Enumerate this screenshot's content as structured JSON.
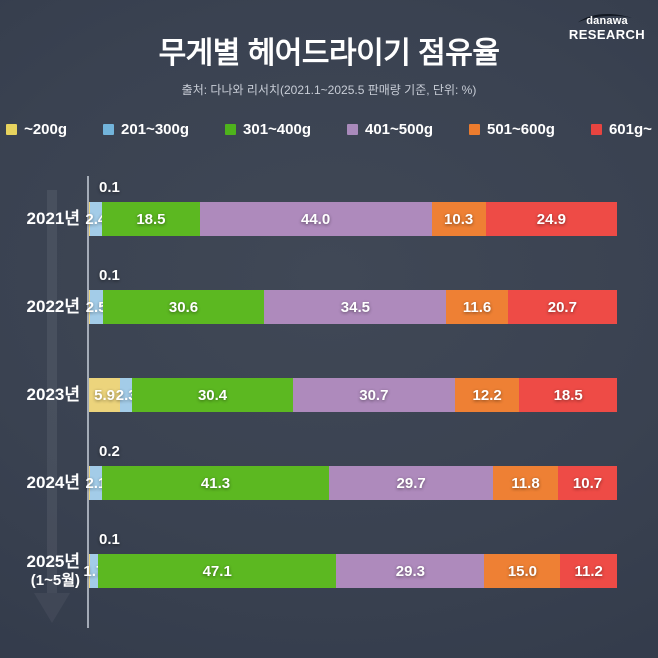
{
  "logo": {
    "brand": "danawa",
    "research": "RESEARCH"
  },
  "header": {
    "title": "무게별 헤어드라이기 점유율",
    "subtitle": "출처: 다나와 리서치(2021.1~2025.5 판매량 기준, 단위: %)"
  },
  "chart_data": {
    "type": "bar",
    "stacked": true,
    "orientation": "horizontal",
    "value_unit": "%",
    "xlim": [
      0,
      100
    ],
    "grid": false,
    "legend_position": "top",
    "categories": [
      "2021년",
      "2022년",
      "2023년",
      "2024년",
      "2025년 (1~5월)"
    ],
    "category_display": [
      {
        "label": "2021년",
        "sub": ""
      },
      {
        "label": "2022년",
        "sub": ""
      },
      {
        "label": "2023년",
        "sub": ""
      },
      {
        "label": "2024년",
        "sub": ""
      },
      {
        "label": "2025년",
        "sub": "(1~5월)"
      }
    ],
    "series": [
      {
        "name": "~200g",
        "color": "#ecd47c",
        "legend_color": "#e7d35e",
        "values": [
          0.1,
          0.1,
          5.9,
          0.2,
          0.1
        ]
      },
      {
        "name": "201~300g",
        "color": "#a3cce8",
        "legend_color": "#72b4db",
        "values": [
          2.4,
          2.5,
          2.3,
          2.1,
          1.7
        ]
      },
      {
        "name": "301~400g",
        "color": "#5cb821",
        "legend_color": "#4eb31c",
        "values": [
          18.5,
          30.6,
          30.4,
          41.3,
          47.1
        ]
      },
      {
        "name": "401~500g",
        "color": "#ae8abc",
        "legend_color": "#a98abb",
        "values": [
          44.0,
          34.5,
          30.7,
          29.7,
          29.3
        ]
      },
      {
        "name": "501~600g",
        "color": "#ee8034",
        "legend_color": "#ec7c2e",
        "values": [
          10.3,
          11.6,
          12.2,
          11.8,
          15.0
        ]
      },
      {
        "name": "601g~",
        "color": "#ee4b46",
        "legend_color": "#e74440",
        "values": [
          24.9,
          20.7,
          18.5,
          10.7,
          11.2
        ]
      }
    ],
    "small_segment_label_threshold": 1.0
  }
}
